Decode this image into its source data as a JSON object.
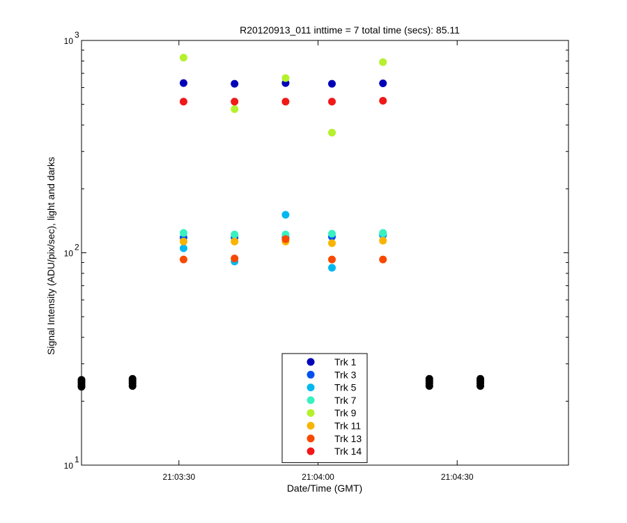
{
  "chart_data": {
    "type": "scatter",
    "title": "R20120913_011 inttime = 7 total time (secs): 85.11",
    "xlabel": "Date/Time (GMT)",
    "ylabel": "Signal Intensity (ADU/pix/sec), light and darks",
    "x_axis": {
      "type": "time",
      "range": [
        "21:03:09",
        "21:04:54"
      ],
      "ticks": [
        "21:03:30",
        "21:04:00",
        "21:04:30"
      ]
    },
    "y_axis": {
      "scale": "log",
      "range": [
        10,
        1000
      ],
      "ticks": [
        {
          "base": "10",
          "exp": "1"
        },
        {
          "base": "10",
          "exp": "2"
        },
        {
          "base": "10",
          "exp": "3"
        }
      ]
    },
    "legend_position": "bottom-center",
    "series": [
      {
        "name": "Trk 1",
        "color": "#0000b8",
        "points": [
          [
            "21:03:31",
            630
          ],
          [
            "21:03:42",
            625
          ],
          [
            "21:03:53",
            630
          ],
          [
            "21:04:03",
            625
          ],
          [
            "21:04:14",
            628
          ]
        ]
      },
      {
        "name": "Trk 3",
        "color": "#0050ee",
        "points": [
          [
            "21:03:31",
            118
          ],
          [
            "21:03:42",
            118
          ],
          [
            "21:03:53",
            118
          ],
          [
            "21:04:03",
            119
          ],
          [
            "21:04:14",
            121
          ]
        ]
      },
      {
        "name": "Trk 5",
        "color": "#00b8f0",
        "points": [
          [
            "21:03:31",
            105
          ],
          [
            "21:03:42",
            91
          ],
          [
            "21:03:53",
            151
          ],
          [
            "21:04:03",
            85
          ],
          [
            "21:04:14",
            122
          ]
        ]
      },
      {
        "name": "Trk 7",
        "color": "#38f0c0",
        "points": [
          [
            "21:03:31",
            124
          ],
          [
            "21:03:42",
            122
          ],
          [
            "21:03:53",
            122
          ],
          [
            "21:04:03",
            123
          ],
          [
            "21:04:14",
            124
          ]
        ]
      },
      {
        "name": "Trk 9",
        "color": "#b4f02c",
        "points": [
          [
            "21:03:31",
            830
          ],
          [
            "21:03:42",
            475
          ],
          [
            "21:03:53",
            665
          ],
          [
            "21:04:03",
            368
          ],
          [
            "21:04:14",
            790
          ]
        ]
      },
      {
        "name": "Trk 11",
        "color": "#f8b400",
        "points": [
          [
            "21:03:31",
            113
          ],
          [
            "21:03:42",
            113
          ],
          [
            "21:03:53",
            113
          ],
          [
            "21:04:03",
            111
          ],
          [
            "21:04:14",
            114
          ]
        ]
      },
      {
        "name": "Trk 13",
        "color": "#f84800",
        "points": [
          [
            "21:03:31",
            93
          ],
          [
            "21:03:42",
            94
          ],
          [
            "21:03:53",
            116
          ],
          [
            "21:04:03",
            93
          ],
          [
            "21:04:14",
            93
          ]
        ]
      },
      {
        "name": "Trk 14",
        "color": "#f01818",
        "points": [
          [
            "21:03:31",
            515
          ],
          [
            "21:03:42",
            515
          ],
          [
            "21:03:53",
            515
          ],
          [
            "21:04:03",
            515
          ],
          [
            "21:04:14",
            520
          ]
        ]
      }
    ],
    "darks": {
      "color": "#000000",
      "points": [
        [
          "21:03:09",
          23.4
        ],
        [
          "21:03:09",
          24.0
        ],
        [
          "21:03:09",
          24.6
        ],
        [
          "21:03:09",
          25.2
        ],
        [
          "21:03:20",
          23.6
        ],
        [
          "21:03:20",
          24.3
        ],
        [
          "21:03:20",
          24.9
        ],
        [
          "21:03:20",
          25.5
        ],
        [
          "21:04:24",
          23.6
        ],
        [
          "21:04:24",
          24.3
        ],
        [
          "21:04:24",
          24.9
        ],
        [
          "21:04:24",
          25.5
        ],
        [
          "21:04:35",
          23.6
        ],
        [
          "21:04:35",
          24.3
        ],
        [
          "21:04:35",
          24.9
        ],
        [
          "21:04:35",
          25.5
        ]
      ]
    }
  }
}
